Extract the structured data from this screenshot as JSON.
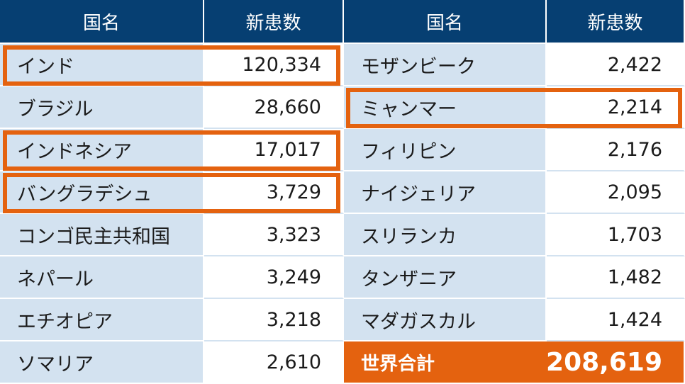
{
  "headers": {
    "left_name": "国名",
    "left_count": "新患数",
    "right_name": "国名",
    "right_count": "新患数"
  },
  "left_rows": [
    {
      "country": "インド",
      "count": "120,334",
      "highlighted": true
    },
    {
      "country": "ブラジル",
      "count": "28,660",
      "highlighted": false
    },
    {
      "country": "インドネシア",
      "count": "17,017",
      "highlighted": true
    },
    {
      "country": "バングラデシュ",
      "count": "3,729",
      "highlighted": true
    },
    {
      "country": "コンゴ民主共和国",
      "count": "3,323",
      "highlighted": false
    },
    {
      "country": "ネパール",
      "count": "3,249",
      "highlighted": false
    },
    {
      "country": "エチオピア",
      "count": "3,218",
      "highlighted": false
    },
    {
      "country": "ソマリア",
      "count": "2,610",
      "highlighted": false
    }
  ],
  "right_rows": [
    {
      "country": "モザンビーク",
      "count": "2,422",
      "highlighted": false
    },
    {
      "country": "ミャンマー",
      "count": "2,214",
      "highlighted": true
    },
    {
      "country": "フィリピン",
      "count": "2,176",
      "highlighted": false
    },
    {
      "country": "ナイジェリア",
      "count": "2,095",
      "highlighted": false
    },
    {
      "country": "スリランカ",
      "count": "1,703",
      "highlighted": false
    },
    {
      "country": "タンザニア",
      "count": "1,482",
      "highlighted": false
    },
    {
      "country": "マダガスカル",
      "count": "1,424",
      "highlighted": false
    }
  ],
  "total": {
    "label": "世界合計",
    "value": "208,619"
  },
  "colors": {
    "header_bg": "#063f72",
    "name_bg": "#d3e2f0",
    "highlight": "#e4620f",
    "total_bg": "#e4620f"
  }
}
